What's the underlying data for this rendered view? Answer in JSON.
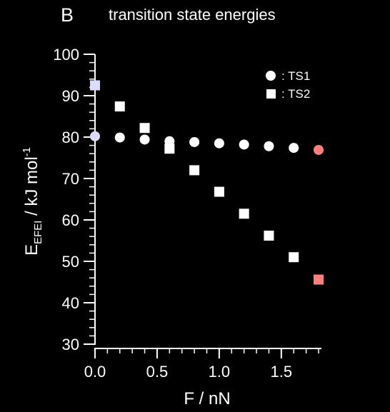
{
  "panel_label": "B",
  "chart_data": {
    "type": "scatter",
    "title": "transition state energies",
    "xlabel": "F / nN",
    "ylabel_main": "E",
    "ylabel_sub": "EFEI",
    "ylabel_unit": " / kJ mol",
    "ylabel_sup": "-1",
    "xlim": [
      0,
      1.8
    ],
    "ylim": [
      30,
      100
    ],
    "xticks": [
      0,
      0.5,
      1,
      1.5
    ],
    "xtick_labels": [
      "0.0",
      "0.5",
      "1.0",
      "1.5"
    ],
    "yticks": [
      30,
      40,
      50,
      60,
      70,
      80,
      90,
      100
    ],
    "ytick_labels": [
      "30",
      "40",
      "50",
      "60",
      "70",
      "80",
      "90",
      "100"
    ],
    "grid": false,
    "legend_position": "top-right",
    "series": [
      {
        "name": ": TS1",
        "marker": "circle",
        "color": "#ffffff",
        "x": [
          0,
          0.2,
          0.4,
          0.6,
          0.8,
          1.0,
          1.2,
          1.4,
          1.6,
          1.8
        ],
        "y": [
          80.2,
          79.9,
          79.4,
          79.0,
          78.8,
          78.5,
          78.2,
          77.8,
          77.4,
          76.9
        ],
        "highlight": [
          {
            "index": 0,
            "color": "#dcdcff"
          },
          {
            "index": 9,
            "color": "#ff7f7f"
          }
        ]
      },
      {
        "name": ": TS2",
        "marker": "square",
        "color": "#ffffff",
        "x": [
          0,
          0.2,
          0.4,
          0.6,
          0.8,
          1.0,
          1.2,
          1.4,
          1.6,
          1.8
        ],
        "y": [
          92.5,
          87.4,
          82.2,
          77.2,
          72.0,
          66.8,
          61.5,
          56.2,
          51.0,
          45.6
        ],
        "highlight": [
          {
            "index": 0,
            "color": "#dcdcff"
          },
          {
            "index": 9,
            "color": "#ff7f7f"
          }
        ]
      }
    ]
  }
}
